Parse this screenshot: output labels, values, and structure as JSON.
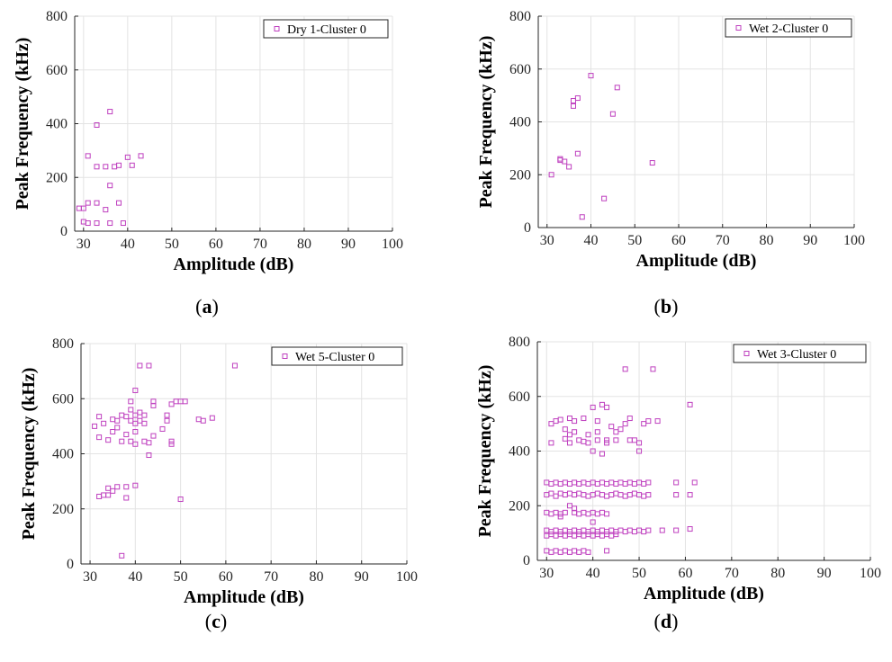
{
  "chart_data": [
    {
      "panel_label": "(a)",
      "type": "scatter",
      "xlabel": "Amplitude (dB)",
      "ylabel": "Peak Frequency (kHz)",
      "xlim": [
        28,
        100
      ],
      "ylim": [
        0,
        800
      ],
      "xticks": [
        "30",
        "40",
        "50",
        "60",
        "70",
        "80",
        "90",
        "100"
      ],
      "yticks": [
        "0",
        "200",
        "400",
        "600",
        "800"
      ],
      "grid": true,
      "legend_position": "top-right",
      "marker_color": "#bf40bf",
      "series": [
        {
          "name": "Dry 1-Cluster 0",
          "points": [
            [
              30,
              35
            ],
            [
              29,
              85
            ],
            [
              30,
              85
            ],
            [
              31,
              105
            ],
            [
              31,
              280
            ],
            [
              31,
              30
            ],
            [
              33,
              30
            ],
            [
              33,
              105
            ],
            [
              33,
              240
            ],
            [
              33,
              395
            ],
            [
              35,
              80
            ],
            [
              35,
              240
            ],
            [
              36,
              445
            ],
            [
              36,
              170
            ],
            [
              36,
              30
            ],
            [
              37,
              240
            ],
            [
              38,
              245
            ],
            [
              38,
              105
            ],
            [
              39,
              30
            ],
            [
              40,
              275
            ],
            [
              41,
              245
            ],
            [
              43,
              280
            ]
          ]
        }
      ]
    },
    {
      "panel_label": "(b)",
      "type": "scatter",
      "xlabel": "Amplitude (dB)",
      "ylabel": "Peak Frequency (kHz)",
      "xlim": [
        28,
        100
      ],
      "ylim": [
        0,
        800
      ],
      "xticks": [
        "30",
        "40",
        "50",
        "60",
        "70",
        "80",
        "90",
        "100"
      ],
      "yticks": [
        "0",
        "200",
        "400",
        "600",
        "800"
      ],
      "grid": true,
      "legend_position": "top-right",
      "marker_color": "#bf40bf",
      "series": [
        {
          "name": "Wet 2-Cluster 0",
          "points": [
            [
              31,
              200
            ],
            [
              33,
              255
            ],
            [
              33,
              260
            ],
            [
              34,
              250
            ],
            [
              35,
              230
            ],
            [
              36,
              460
            ],
            [
              36,
              480
            ],
            [
              37,
              490
            ],
            [
              37,
              280
            ],
            [
              38,
              40
            ],
            [
              40,
              575
            ],
            [
              43,
              110
            ],
            [
              45,
              430
            ],
            [
              46,
              530
            ],
            [
              54,
              245
            ]
          ]
        }
      ]
    },
    {
      "panel_label": "(c)",
      "type": "scatter",
      "xlabel": "Amplitude (dB)",
      "ylabel": "Peak Frequency (kHz)",
      "xlim": [
        28,
        100
      ],
      "ylim": [
        0,
        800
      ],
      "xticks": [
        "30",
        "40",
        "50",
        "60",
        "70",
        "80",
        "90",
        "100"
      ],
      "yticks": [
        "0",
        "200",
        "400",
        "600",
        "800"
      ],
      "grid": true,
      "legend_position": "top-right",
      "marker_color": "#bf40bf",
      "series": [
        {
          "name": "Wet 5-Cluster 0",
          "points": [
            [
              31,
              500
            ],
            [
              32,
              535
            ],
            [
              32,
              460
            ],
            [
              33,
              510
            ],
            [
              34,
              450
            ],
            [
              35,
              525
            ],
            [
              35,
              480
            ],
            [
              36,
              495
            ],
            [
              36,
              520
            ],
            [
              37,
              540
            ],
            [
              37,
              445
            ],
            [
              38,
              535
            ],
            [
              38,
              470
            ],
            [
              39,
              445
            ],
            [
              39,
              520
            ],
            [
              39,
              560
            ],
            [
              39,
              590
            ],
            [
              40,
              480
            ],
            [
              40,
              540
            ],
            [
              40,
              510
            ],
            [
              40,
              630
            ],
            [
              40,
              435
            ],
            [
              41,
              720
            ],
            [
              41,
              550
            ],
            [
              41,
              520
            ],
            [
              42,
              540
            ],
            [
              42,
              510
            ],
            [
              42,
              445
            ],
            [
              43,
              440
            ],
            [
              43,
              720
            ],
            [
              43,
              395
            ],
            [
              44,
              575
            ],
            [
              44,
              590
            ],
            [
              44,
              465
            ],
            [
              46,
              490
            ],
            [
              47,
              520
            ],
            [
              47,
              540
            ],
            [
              48,
              580
            ],
            [
              48,
              435
            ],
            [
              48,
              445
            ],
            [
              49,
              590
            ],
            [
              50,
              590
            ],
            [
              51,
              590
            ],
            [
              54,
              525
            ],
            [
              55,
              520
            ],
            [
              57,
              530
            ],
            [
              62,
              720
            ],
            [
              32,
              245
            ],
            [
              33,
              250
            ],
            [
              34,
              250
            ],
            [
              34,
              275
            ],
            [
              35,
              265
            ],
            [
              36,
              280
            ],
            [
              38,
              240
            ],
            [
              38,
              280
            ],
            [
              40,
              285
            ],
            [
              50,
              235
            ],
            [
              37,
              30
            ]
          ]
        }
      ]
    },
    {
      "panel_label": "(d)",
      "type": "scatter",
      "xlabel": "Amplitude (dB)",
      "ylabel": "Peak Frequency (kHz)",
      "xlim": [
        28,
        100
      ],
      "ylim": [
        0,
        800
      ],
      "xticks": [
        "30",
        "40",
        "50",
        "60",
        "70",
        "80",
        "90",
        "100"
      ],
      "yticks": [
        "0",
        "200",
        "400",
        "600",
        "800"
      ],
      "grid": true,
      "legend_position": "top-right",
      "marker_color": "#bf40bf",
      "series": [
        {
          "name": "Wet 3-Cluster 0",
          "points": [
            [
              31,
              430
            ],
            [
              31,
              500
            ],
            [
              32,
              510
            ],
            [
              33,
              515
            ],
            [
              34,
              480
            ],
            [
              34,
              445
            ],
            [
              35,
              520
            ],
            [
              35,
              460
            ],
            [
              35,
              430
            ],
            [
              36,
              470
            ],
            [
              36,
              510
            ],
            [
              37,
              440
            ],
            [
              38,
              435
            ],
            [
              38,
              520
            ],
            [
              39,
              430
            ],
            [
              39,
              460
            ],
            [
              40,
              400
            ],
            [
              40,
              560
            ],
            [
              41,
              510
            ],
            [
              41,
              470
            ],
            [
              41,
              440
            ],
            [
              42,
              570
            ],
            [
              42,
              390
            ],
            [
              43,
              560
            ],
            [
              43,
              430
            ],
            [
              43,
              440
            ],
            [
              44,
              490
            ],
            [
              45,
              470
            ],
            [
              45,
              440
            ],
            [
              46,
              480
            ],
            [
              47,
              500
            ],
            [
              47,
              700
            ],
            [
              48,
              440
            ],
            [
              48,
              520
            ],
            [
              49,
              440
            ],
            [
              50,
              430
            ],
            [
              50,
              400
            ],
            [
              51,
              500
            ],
            [
              52,
              510
            ],
            [
              53,
              700
            ],
            [
              54,
              510
            ],
            [
              61,
              570
            ],
            [
              30,
              240
            ],
            [
              31,
              245
            ],
            [
              32,
              235
            ],
            [
              33,
              245
            ],
            [
              34,
              240
            ],
            [
              35,
              245
            ],
            [
              36,
              240
            ],
            [
              37,
              245
            ],
            [
              38,
              240
            ],
            [
              39,
              235
            ],
            [
              40,
              240
            ],
            [
              41,
              245
            ],
            [
              42,
              240
            ],
            [
              43,
              235
            ],
            [
              44,
              240
            ],
            [
              45,
              245
            ],
            [
              46,
              240
            ],
            [
              47,
              235
            ],
            [
              48,
              240
            ],
            [
              49,
              245
            ],
            [
              50,
              240
            ],
            [
              51,
              235
            ],
            [
              52,
              240
            ],
            [
              58,
              240
            ],
            [
              61,
              240
            ],
            [
              30,
              285
            ],
            [
              31,
              280
            ],
            [
              32,
              285
            ],
            [
              33,
              280
            ],
            [
              34,
              285
            ],
            [
              35,
              280
            ],
            [
              36,
              285
            ],
            [
              37,
              280
            ],
            [
              38,
              285
            ],
            [
              39,
              280
            ],
            [
              40,
              285
            ],
            [
              41,
              280
            ],
            [
              42,
              285
            ],
            [
              43,
              280
            ],
            [
              44,
              285
            ],
            [
              45,
              280
            ],
            [
              46,
              285
            ],
            [
              47,
              280
            ],
            [
              48,
              285
            ],
            [
              49,
              280
            ],
            [
              50,
              285
            ],
            [
              51,
              280
            ],
            [
              52,
              285
            ],
            [
              58,
              285
            ],
            [
              62,
              285
            ],
            [
              30,
              175
            ],
            [
              31,
              170
            ],
            [
              32,
              175
            ],
            [
              33,
              170
            ],
            [
              34,
              175
            ],
            [
              35,
              200
            ],
            [
              36,
              175
            ],
            [
              37,
              170
            ],
            [
              38,
              175
            ],
            [
              39,
              170
            ],
            [
              40,
              175
            ],
            [
              41,
              170
            ],
            [
              42,
              175
            ],
            [
              43,
              170
            ],
            [
              33,
              160
            ],
            [
              36,
              190
            ],
            [
              40,
              140
            ],
            [
              30,
              110
            ],
            [
              31,
              105
            ],
            [
              32,
              110
            ],
            [
              33,
              105
            ],
            [
              34,
              110
            ],
            [
              35,
              105
            ],
            [
              36,
              110
            ],
            [
              37,
              105
            ],
            [
              38,
              110
            ],
            [
              39,
              105
            ],
            [
              40,
              110
            ],
            [
              41,
              105
            ],
            [
              42,
              110
            ],
            [
              43,
              105
            ],
            [
              44,
              110
            ],
            [
              45,
              105
            ],
            [
              46,
              110
            ],
            [
              47,
              105
            ],
            [
              48,
              110
            ],
            [
              49,
              105
            ],
            [
              50,
              110
            ],
            [
              51,
              105
            ],
            [
              52,
              110
            ],
            [
              55,
              110
            ],
            [
              58,
              110
            ],
            [
              61,
              115
            ],
            [
              30,
              90
            ],
            [
              31,
              95
            ],
            [
              32,
              90
            ],
            [
              33,
              95
            ],
            [
              34,
              90
            ],
            [
              35,
              95
            ],
            [
              36,
              90
            ],
            [
              37,
              95
            ],
            [
              38,
              90
            ],
            [
              39,
              95
            ],
            [
              40,
              90
            ],
            [
              41,
              95
            ],
            [
              42,
              90
            ],
            [
              43,
              95
            ],
            [
              44,
              90
            ],
            [
              45,
              95
            ],
            [
              30,
              35
            ],
            [
              31,
              30
            ],
            [
              32,
              35
            ],
            [
              33,
              30
            ],
            [
              34,
              35
            ],
            [
              35,
              30
            ],
            [
              36,
              35
            ],
            [
              37,
              30
            ],
            [
              38,
              35
            ],
            [
              39,
              30
            ],
            [
              43,
              35
            ]
          ]
        }
      ]
    }
  ]
}
